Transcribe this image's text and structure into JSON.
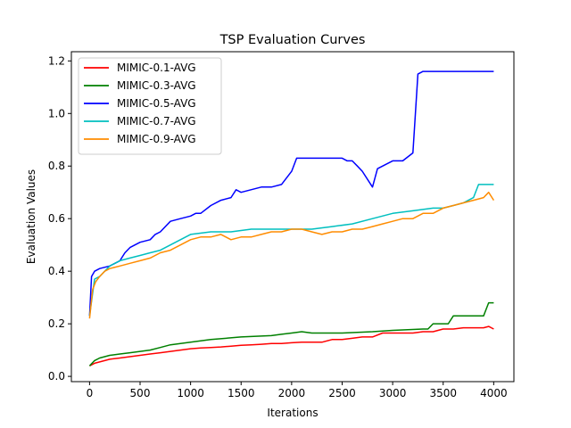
{
  "chart_data": {
    "type": "line",
    "title": "TSP Evaluation Curves",
    "xlabel": "Iterations",
    "ylabel": "Evaluation Values",
    "xlim": [
      -180,
      4200
    ],
    "ylim": [
      -0.02,
      1.235
    ],
    "xticks": [
      0,
      500,
      1000,
      1500,
      2000,
      2500,
      3000,
      3500,
      4000
    ],
    "xtick_labels": [
      "0",
      "500",
      "1000",
      "1500",
      "2000",
      "2500",
      "3000",
      "3500",
      "4000"
    ],
    "yticks": [
      0.0,
      0.2,
      0.4,
      0.6,
      0.8,
      1.0,
      1.2
    ],
    "ytick_labels": [
      "0.0",
      "0.2",
      "0.4",
      "0.6",
      "0.8",
      "1.0",
      "1.2"
    ],
    "grid": false,
    "legend_position": "upper-left",
    "series": [
      {
        "name": "MIMIC-0.1-AVG",
        "color": "#ff0000",
        "x": [
          0,
          50,
          100,
          150,
          200,
          300,
          400,
          500,
          600,
          700,
          800,
          900,
          1000,
          1100,
          1200,
          1300,
          1400,
          1500,
          1600,
          1700,
          1800,
          1900,
          2000,
          2100,
          2200,
          2300,
          2400,
          2500,
          2600,
          2700,
          2800,
          2900,
          3000,
          3100,
          3200,
          3300,
          3400,
          3500,
          3600,
          3700,
          3800,
          3900,
          3950,
          4000
        ],
        "y": [
          0.04,
          0.05,
          0.055,
          0.06,
          0.065,
          0.07,
          0.075,
          0.08,
          0.085,
          0.09,
          0.095,
          0.1,
          0.105,
          0.108,
          0.11,
          0.112,
          0.115,
          0.118,
          0.12,
          0.122,
          0.125,
          0.125,
          0.128,
          0.13,
          0.13,
          0.13,
          0.14,
          0.14,
          0.145,
          0.15,
          0.15,
          0.165,
          0.165,
          0.165,
          0.165,
          0.17,
          0.17,
          0.18,
          0.18,
          0.185,
          0.185,
          0.185,
          0.19,
          0.18
        ]
      },
      {
        "name": "MIMIC-0.3-AVG",
        "color": "#008000",
        "x": [
          0,
          50,
          100,
          150,
          200,
          300,
          400,
          500,
          600,
          700,
          800,
          1000,
          1100,
          1200,
          1500,
          1800,
          1900,
          2000,
          2100,
          2200,
          2500,
          2800,
          3000,
          3300,
          3350,
          3400,
          3550,
          3600,
          3700,
          3800,
          3900,
          3950,
          4000
        ],
        "y": [
          0.04,
          0.06,
          0.07,
          0.075,
          0.08,
          0.085,
          0.09,
          0.095,
          0.1,
          0.11,
          0.12,
          0.13,
          0.135,
          0.14,
          0.15,
          0.155,
          0.16,
          0.165,
          0.17,
          0.165,
          0.165,
          0.17,
          0.175,
          0.18,
          0.18,
          0.2,
          0.2,
          0.23,
          0.23,
          0.23,
          0.23,
          0.28,
          0.28
        ]
      },
      {
        "name": "MIMIC-0.5-AVG",
        "color": "#0000ff",
        "x": [
          0,
          20,
          50,
          100,
          200,
          300,
          350,
          400,
          500,
          600,
          650,
          700,
          800,
          900,
          1000,
          1050,
          1100,
          1200,
          1300,
          1400,
          1450,
          1500,
          1700,
          1800,
          1900,
          2000,
          2050,
          2100,
          2200,
          2300,
          2400,
          2500,
          2550,
          2600,
          2650,
          2700,
          2800,
          2850,
          3000,
          3100,
          3200,
          3250,
          3300,
          3400,
          3500,
          3600,
          3700,
          3800,
          3900,
          4000
        ],
        "y": [
          0.23,
          0.38,
          0.4,
          0.41,
          0.42,
          0.44,
          0.47,
          0.49,
          0.51,
          0.52,
          0.54,
          0.55,
          0.59,
          0.6,
          0.61,
          0.62,
          0.62,
          0.65,
          0.67,
          0.68,
          0.71,
          0.7,
          0.72,
          0.72,
          0.73,
          0.78,
          0.83,
          0.83,
          0.83,
          0.83,
          0.83,
          0.83,
          0.82,
          0.82,
          0.8,
          0.78,
          0.72,
          0.79,
          0.82,
          0.82,
          0.85,
          1.15,
          1.16,
          1.16,
          1.16,
          1.16,
          1.16,
          1.16,
          1.16,
          1.16
        ]
      },
      {
        "name": "MIMIC-0.7-AVG",
        "color": "#00bfbf",
        "x": [
          0,
          50,
          100,
          200,
          300,
          400,
          500,
          600,
          700,
          800,
          900,
          1000,
          1200,
          1400,
          1600,
          1800,
          2000,
          2200,
          2400,
          2600,
          2800,
          3000,
          3200,
          3400,
          3500,
          3600,
          3700,
          3800,
          3850,
          3900,
          4000
        ],
        "y": [
          0.23,
          0.37,
          0.38,
          0.42,
          0.44,
          0.45,
          0.46,
          0.47,
          0.48,
          0.5,
          0.52,
          0.54,
          0.55,
          0.55,
          0.56,
          0.56,
          0.56,
          0.56,
          0.57,
          0.58,
          0.6,
          0.62,
          0.63,
          0.64,
          0.64,
          0.65,
          0.66,
          0.68,
          0.73,
          0.73,
          0.73
        ]
      },
      {
        "name": "MIMIC-0.9-AVG",
        "color": "#ff8c00",
        "x": [
          0,
          30,
          60,
          100,
          150,
          200,
          300,
          400,
          500,
          600,
          700,
          800,
          900,
          1000,
          1100,
          1200,
          1300,
          1400,
          1500,
          1600,
          1700,
          1800,
          1900,
          2000,
          2100,
          2200,
          2300,
          2400,
          2500,
          2600,
          2700,
          2800,
          2900,
          3000,
          3100,
          3200,
          3300,
          3400,
          3500,
          3600,
          3700,
          3800,
          3900,
          3950,
          4000
        ],
        "y": [
          0.22,
          0.33,
          0.36,
          0.38,
          0.4,
          0.41,
          0.42,
          0.43,
          0.44,
          0.45,
          0.47,
          0.48,
          0.5,
          0.52,
          0.53,
          0.53,
          0.54,
          0.52,
          0.53,
          0.53,
          0.54,
          0.55,
          0.55,
          0.56,
          0.56,
          0.55,
          0.54,
          0.55,
          0.55,
          0.56,
          0.56,
          0.57,
          0.58,
          0.59,
          0.6,
          0.6,
          0.62,
          0.62,
          0.64,
          0.65,
          0.66,
          0.67,
          0.68,
          0.7,
          0.67
        ]
      }
    ]
  }
}
